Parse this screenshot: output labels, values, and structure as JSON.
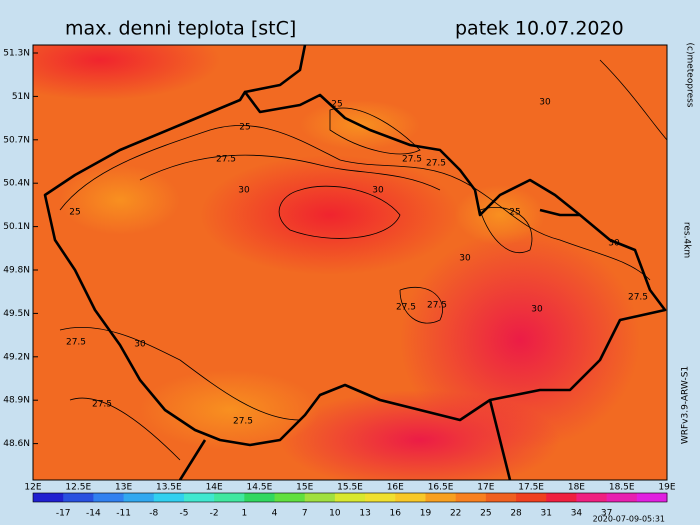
{
  "header": {
    "title": "max. denni teplota [stC]",
    "date": "patek 10.07.2020"
  },
  "latitude_labels": [
    "51.3N",
    "51N",
    "50.7N",
    "50.4N",
    "50.1N",
    "49.8N",
    "49.5N",
    "49.2N",
    "48.9N",
    "48.6N"
  ],
  "longitude_labels": [
    "12E",
    "12.5E",
    "13E",
    "13.5E",
    "14E",
    "14.5E",
    "15E",
    "15.5E",
    "16E",
    "16.5E",
    "17E",
    "17.5E",
    "18E",
    "18.5E",
    "19E"
  ],
  "colorbar": {
    "ticks": [
      "-17",
      "-14",
      "-11",
      "-8",
      "-5",
      "-2",
      "1",
      "4",
      "7",
      "10",
      "13",
      "16",
      "19",
      "22",
      "25",
      "28",
      "31",
      "34",
      "37"
    ],
    "colors": [
      "#2020d0",
      "#2850e0",
      "#3080f0",
      "#30a8f0",
      "#30d0f0",
      "#40e8d0",
      "#40e8a0",
      "#30d860",
      "#60e040",
      "#a0e040",
      "#d8e830",
      "#f0e030",
      "#f8c828",
      "#f8a020",
      "#f88020",
      "#f06020",
      "#f04020",
      "#f02040",
      "#f02080",
      "#e820b0",
      "#e020e0"
    ]
  },
  "side_labels": {
    "copyright": "(c)meteopress",
    "resolution": "res.4km",
    "model": "WRFv3.9-ARW-S1"
  },
  "timestamp": "2020-07-09-05:31",
  "contour_labels": [
    "25",
    "25",
    "27.5",
    "27.5",
    "30",
    "27.5",
    "30",
    "25",
    "30",
    "25",
    "30",
    "27.5",
    "27.5",
    "30",
    "27.5",
    "27.5",
    "30",
    "27.5",
    "27.5",
    "30"
  ]
}
